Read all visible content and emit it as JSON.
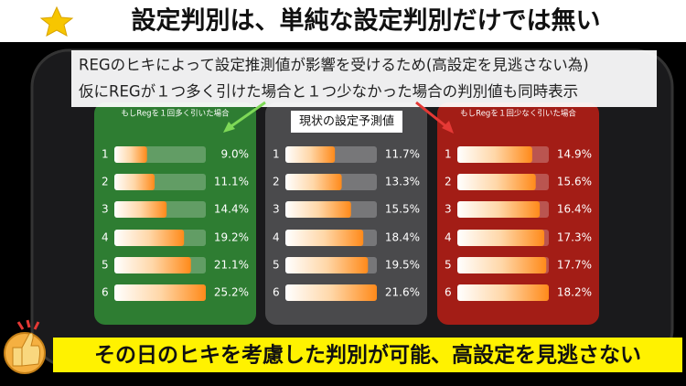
{
  "header": {
    "title": "設定判別は、単純な設定判別だけでは無い"
  },
  "note": {
    "lines": [
      "REGのヒキによって設定推測値が影響を受けるため(高設定を見逃さない為)",
      "仮にREGが１つ多く引けた場合と１つ少なかった場合の判別値も同時表示"
    ]
  },
  "footer": {
    "text": "その日のヒキを考慮した判別が可能、高設定を見逃さない"
  },
  "chart_data": [
    {
      "type": "bar",
      "title": "もしRegを１回多く引いた場合",
      "color": "#2e7d32",
      "categories": [
        "1",
        "2",
        "3",
        "4",
        "5",
        "6"
      ],
      "values": [
        9.0,
        11.1,
        14.4,
        19.2,
        21.1,
        25.2
      ],
      "value_labels": [
        "9.0%",
        "11.1%",
        "14.4%",
        "19.2%",
        "21.1%",
        "25.2%"
      ]
    },
    {
      "type": "bar",
      "title": "現状の設定予測値",
      "color": "#4a4a4c",
      "categories": [
        "1",
        "2",
        "3",
        "4",
        "5",
        "6"
      ],
      "values": [
        11.7,
        13.3,
        15.5,
        18.4,
        19.5,
        21.6
      ],
      "value_labels": [
        "11.7%",
        "13.3%",
        "15.5%",
        "18.4%",
        "19.5%",
        "21.6%"
      ]
    },
    {
      "type": "bar",
      "title": "もしRegを１回少なく引いた場合",
      "color": "#a31d16",
      "categories": [
        "1",
        "2",
        "3",
        "4",
        "5",
        "6"
      ],
      "values": [
        14.9,
        15.6,
        16.4,
        17.3,
        17.7,
        18.2
      ],
      "value_labels": [
        "14.9%",
        "15.6%",
        "16.4%",
        "17.3%",
        "17.7%",
        "18.2%"
      ]
    }
  ]
}
